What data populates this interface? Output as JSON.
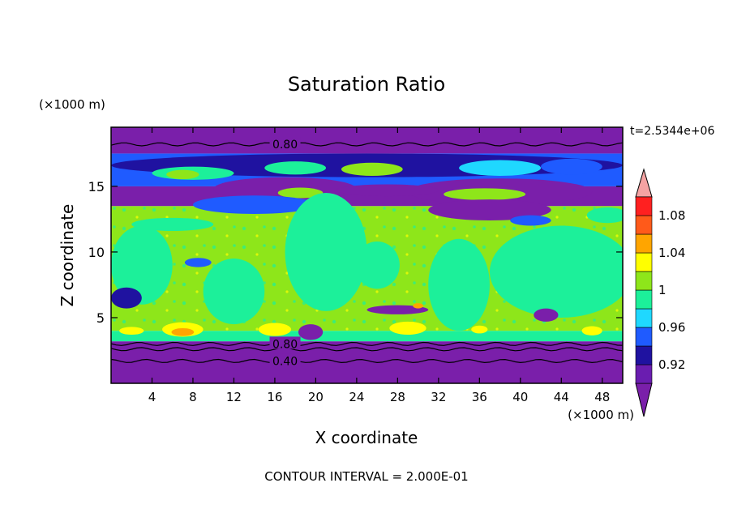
{
  "chart_data": {
    "type": "heatmap",
    "title": "Saturation Ratio",
    "xlabel": "X coordinate",
    "ylabel": "Z coordinate",
    "x_unit": "(×1000 m)",
    "y_unit": "(×1000 m)",
    "time_label": "t=2.5344e+06",
    "footer": "CONTOUR INTERVAL = 2.000E-01",
    "xlim": [
      0,
      50
    ],
    "ylim": [
      0,
      19.5
    ],
    "x_ticks": [
      4,
      8,
      12,
      16,
      20,
      24,
      28,
      32,
      36,
      40,
      44,
      48
    ],
    "y_ticks": [
      5,
      10,
      15
    ],
    "contour_lines": [
      {
        "label": "0.80",
        "x": 17,
        "y": 18.2
      },
      {
        "label": "0.80",
        "x": 17,
        "y": 3.0
      },
      {
        "label": "0.40",
        "x": 17,
        "y": 1.7
      }
    ],
    "colorbar": {
      "levels": [
        "0.92",
        "0.96",
        "1",
        "1.04",
        "1.08"
      ],
      "bins": [
        {
          "range": "< 0.90",
          "color": "#7a1faa"
        },
        {
          "range": "0.90-0.92",
          "color": "#6a1db0"
        },
        {
          "range": "0.92-0.94",
          "color": "#1f12a0"
        },
        {
          "range": "0.94-0.96",
          "color": "#1f5bff"
        },
        {
          "range": "0.96-0.98",
          "color": "#1fd8ff"
        },
        {
          "range": "0.98-1.00",
          "color": "#1cf09a"
        },
        {
          "range": "1.00-1.02",
          "color": "#8ee61a"
        },
        {
          "range": "1.02-1.04",
          "color": "#ffff00"
        },
        {
          "range": "1.04-1.06",
          "color": "#ffa500"
        },
        {
          "range": "1.06-1.08",
          "color": "#ff5a1a"
        },
        {
          "range": "1.08-1.10",
          "color": "#ff2020"
        },
        {
          "range": "> 1.10",
          "color": "#f4a3a3"
        }
      ]
    },
    "field_bands": [
      {
        "z": [
          0,
          3.2
        ],
        "value": "< 0.90"
      },
      {
        "z": [
          3.2,
          4
        ],
        "value": "0.98-1.00"
      },
      {
        "z": [
          4,
          13.5
        ],
        "value": "1.00-1.02"
      },
      {
        "z": [
          13.5,
          15
        ],
        "value": "< 0.90"
      },
      {
        "z": [
          15,
          17.5
        ],
        "value": "0.94-0.96"
      },
      {
        "z": [
          17.5,
          19.5
        ],
        "value": "< 0.90"
      }
    ]
  }
}
